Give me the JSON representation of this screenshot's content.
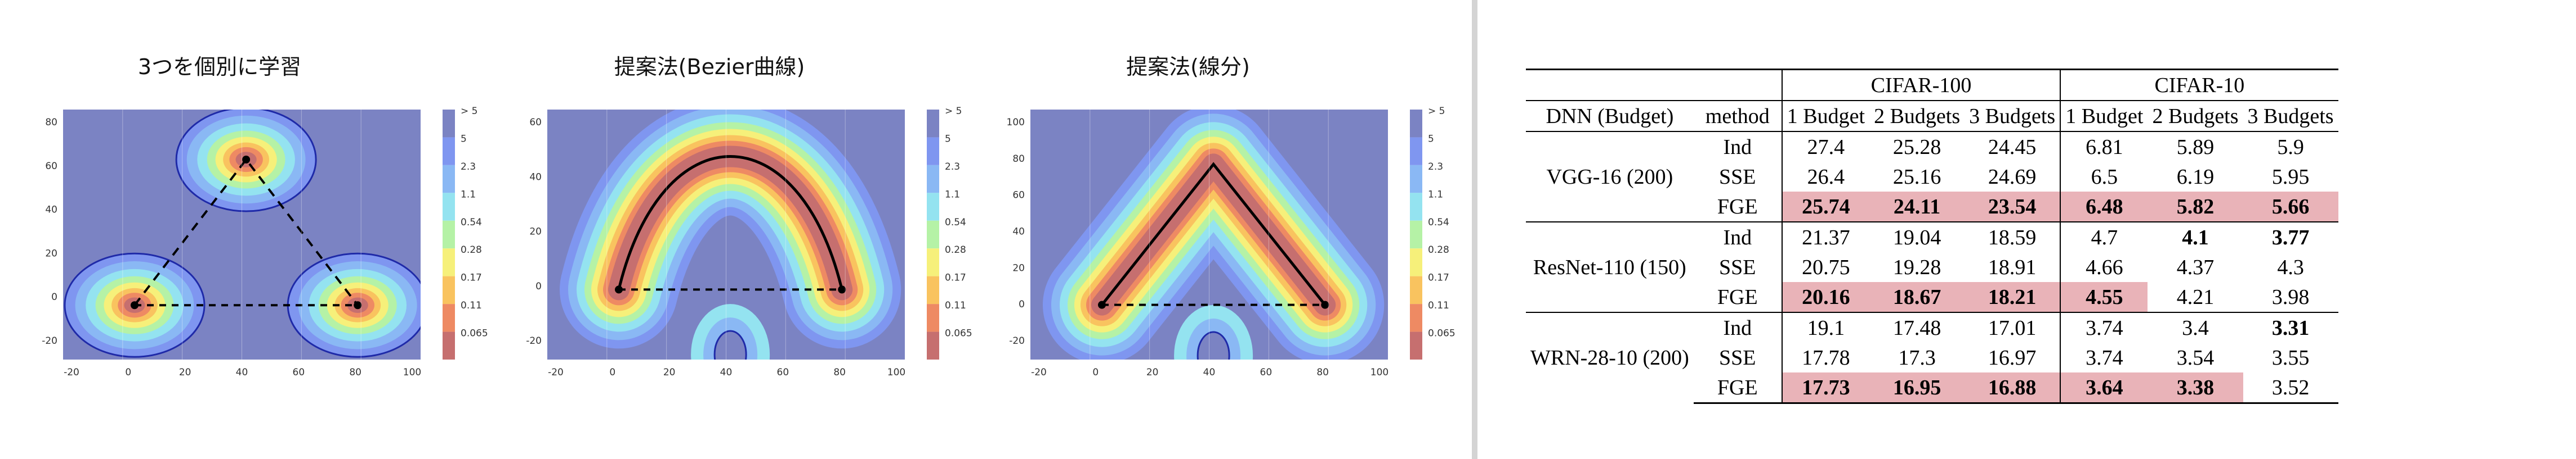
{
  "plots": {
    "titles": [
      "3つを個別に学習",
      "提案法(Bezier曲線)",
      "提案法(線分)"
    ],
    "colorbar_ticks": [
      "> 5",
      "5",
      "2.3",
      "1.1",
      "0.54",
      "0.28",
      "0.17",
      "0.11",
      "0.065"
    ],
    "level_colors": [
      "#7b83c3",
      "#7f96f0",
      "#8ab8f4",
      "#94e3f0",
      "#b5f2a6",
      "#f6f07a",
      "#f9c35f",
      "#ee8a63",
      "#c66f6f"
    ],
    "x_ticks": [
      "-20",
      "0",
      "20",
      "40",
      "60",
      "80",
      "100"
    ],
    "y_ticks": [
      [
        "80",
        "60",
        "40",
        "20",
        "0",
        "-20"
      ],
      [
        "60",
        "40",
        "20",
        "0",
        "-20"
      ],
      [
        "100",
        "80",
        "60",
        "40",
        "20",
        "0",
        "-20"
      ]
    ]
  },
  "table": {
    "head1": {
      "dnn": "DNN (Budget)",
      "method": "method",
      "group1": "CIFAR-100",
      "group2": "CIFAR-10"
    },
    "budgets": [
      "1 Budget",
      "2 Budgets",
      "3 Budgets",
      "1 Budget",
      "2 Budgets",
      "3 Budgets"
    ],
    "groups": [
      {
        "name": "VGG-16 (200)",
        "rows": [
          {
            "method": "Ind",
            "vals": [
              "27.4",
              "25.28",
              "24.45",
              "6.81",
              "5.89",
              "5.9"
            ]
          },
          {
            "method": "SSE",
            "vals": [
              "26.4",
              "25.16",
              "24.69",
              "6.5",
              "6.19",
              "5.95"
            ]
          },
          {
            "method": "FGE",
            "vals": [
              "25.74",
              "24.11",
              "23.54",
              "6.48",
              "5.82",
              "5.66"
            ]
          }
        ]
      },
      {
        "name": "ResNet-110 (150)",
        "rows": [
          {
            "method": "Ind",
            "vals": [
              "21.37",
              "19.04",
              "18.59",
              "4.7",
              "4.1",
              "3.77"
            ]
          },
          {
            "method": "SSE",
            "vals": [
              "20.75",
              "19.28",
              "18.91",
              "4.66",
              "4.37",
              "4.3"
            ]
          },
          {
            "method": "FGE",
            "vals": [
              "20.16",
              "18.67",
              "18.21",
              "4.55",
              "4.21",
              "3.98"
            ]
          }
        ]
      },
      {
        "name": "WRN-28-10 (200)",
        "rows": [
          {
            "method": "Ind",
            "vals": [
              "19.1",
              "17.48",
              "17.01",
              "3.74",
              "3.4",
              "3.31"
            ]
          },
          {
            "method": "SSE",
            "vals": [
              "17.78",
              "17.3",
              "16.97",
              "3.74",
              "3.54",
              "3.55"
            ]
          },
          {
            "method": "FGE",
            "vals": [
              "17.73",
              "16.95",
              "16.88",
              "3.64",
              "3.38",
              "3.52"
            ]
          }
        ]
      }
    ]
  }
}
